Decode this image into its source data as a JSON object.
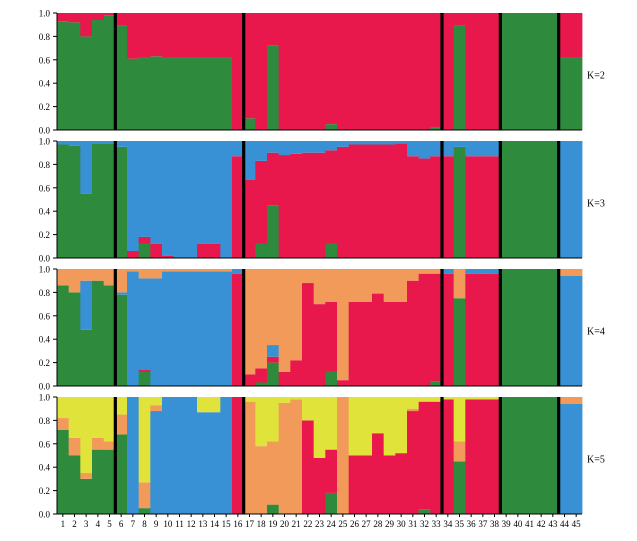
{
  "chart_data": {
    "type": "bar",
    "stacked": true,
    "normalized": true,
    "colors": {
      "green": "#2e8b3e",
      "red": "#e8184c",
      "blue": "#3891d4",
      "orange": "#f29a5a",
      "yellow": "#dfe33a",
      "separator": "#000000"
    },
    "x_labels": [
      "1",
      "2",
      "3",
      "4",
      "5",
      "6",
      "7",
      "8",
      "9",
      "10",
      "11",
      "12",
      "13",
      "14",
      "15",
      "16",
      "17",
      "18",
      "19",
      "20",
      "21",
      "22",
      "23",
      "24",
      "25",
      "26",
      "27",
      "28",
      "29",
      "30",
      "31",
      "32",
      "33",
      "34",
      "35",
      "36",
      "37",
      "38",
      "39",
      "40",
      "41",
      "42",
      "43",
      "44",
      "45"
    ],
    "separators_after": [
      5,
      16,
      33,
      38,
      43
    ],
    "ylim": [
      0,
      1.0
    ],
    "yticks": [
      "0.0",
      "0.2",
      "0.4",
      "0.6",
      "0.8",
      "1.0"
    ],
    "series_order": [
      "green",
      "red",
      "blue",
      "orange",
      "yellow"
    ],
    "panels": [
      {
        "label": "K=2",
        "green": [
          0.93,
          0.92,
          0.8,
          0.94,
          0.98,
          0.89,
          0.61,
          0.62,
          0.63,
          0.62,
          0.62,
          0.62,
          0.62,
          0.62,
          0.62,
          0.0,
          0.1,
          0.0,
          0.72,
          0.0,
          0.0,
          0.0,
          0.0,
          0.05,
          0.0,
          0.0,
          0.0,
          0.0,
          0.0,
          0.0,
          0.0,
          0.0,
          0.02,
          0.0,
          0.89,
          0.0,
          0.0,
          0.0,
          1.0,
          1.0,
          1.0,
          1.0,
          1.0,
          0.62,
          0.62
        ],
        "red": [
          0.07,
          0.08,
          0.2,
          0.06,
          0.02,
          0.11,
          0.39,
          0.38,
          0.37,
          0.38,
          0.38,
          0.38,
          0.38,
          0.38,
          0.38,
          1.0,
          0.9,
          1.0,
          0.28,
          1.0,
          1.0,
          1.0,
          1.0,
          0.95,
          1.0,
          1.0,
          1.0,
          1.0,
          1.0,
          1.0,
          1.0,
          1.0,
          0.98,
          1.0,
          0.11,
          1.0,
          1.0,
          1.0,
          0.0,
          0.0,
          0.0,
          0.0,
          0.0,
          0.38,
          0.38
        ]
      },
      {
        "label": "K=3",
        "green": [
          0.97,
          0.96,
          0.55,
          0.98,
          0.98,
          0.95,
          0.0,
          0.12,
          0.0,
          0.0,
          0.0,
          0.0,
          0.0,
          0.0,
          0.0,
          0.0,
          0.0,
          0.12,
          0.45,
          0.0,
          0.0,
          0.0,
          0.0,
          0.12,
          0.0,
          0.0,
          0.0,
          0.0,
          0.0,
          0.0,
          0.0,
          0.0,
          0.0,
          0.0,
          0.95,
          0.0,
          0.0,
          0.0,
          1.0,
          1.0,
          1.0,
          1.0,
          1.0,
          0.0,
          0.0
        ],
        "red": [
          0.0,
          0.0,
          0.0,
          0.0,
          0.0,
          0.0,
          0.06,
          0.06,
          0.12,
          0.02,
          0.0,
          0.0,
          0.12,
          0.12,
          0.0,
          0.87,
          0.67,
          0.71,
          0.45,
          0.88,
          0.89,
          0.9,
          0.9,
          0.8,
          0.95,
          0.97,
          0.97,
          0.97,
          0.97,
          0.98,
          0.87,
          0.85,
          0.87,
          0.87,
          0.0,
          0.87,
          0.87,
          0.87,
          0.0,
          0.0,
          0.0,
          0.0,
          0.0,
          0.0,
          0.0
        ],
        "blue": [
          0.03,
          0.04,
          0.45,
          0.02,
          0.02,
          0.05,
          0.94,
          0.82,
          0.88,
          0.98,
          1.0,
          1.0,
          0.88,
          0.88,
          1.0,
          0.13,
          0.33,
          0.17,
          0.1,
          0.12,
          0.11,
          0.1,
          0.1,
          0.08,
          0.05,
          0.03,
          0.03,
          0.03,
          0.03,
          0.02,
          0.13,
          0.15,
          0.13,
          0.13,
          0.05,
          0.13,
          0.13,
          0.13,
          0.0,
          0.0,
          0.0,
          0.0,
          0.0,
          1.0,
          1.0
        ]
      },
      {
        "label": "K=4",
        "green": [
          0.86,
          0.8,
          0.48,
          0.9,
          0.86,
          0.78,
          0.0,
          0.12,
          0.0,
          0.0,
          0.0,
          0.0,
          0.0,
          0.0,
          0.0,
          0.0,
          0.0,
          0.03,
          0.2,
          0.0,
          0.0,
          0.0,
          0.0,
          0.12,
          0.0,
          0.0,
          0.0,
          0.0,
          0.0,
          0.0,
          0.0,
          0.0,
          0.04,
          0.0,
          0.75,
          0.0,
          0.0,
          0.0,
          1.0,
          1.0,
          1.0,
          1.0,
          1.0,
          0.0,
          0.0
        ],
        "red": [
          0.0,
          0.0,
          0.0,
          0.0,
          0.0,
          0.0,
          0.0,
          0.02,
          0.0,
          0.0,
          0.0,
          0.0,
          0.0,
          0.0,
          0.0,
          0.96,
          0.1,
          0.12,
          0.05,
          0.12,
          0.22,
          0.88,
          0.7,
          0.6,
          0.05,
          0.72,
          0.72,
          0.79,
          0.72,
          0.72,
          0.9,
          0.96,
          0.92,
          0.96,
          0.0,
          0.96,
          0.96,
          0.96,
          0.0,
          0.0,
          0.0,
          0.0,
          0.0,
          0.0,
          0.0
        ],
        "blue": [
          0.0,
          0.0,
          0.42,
          0.0,
          0.0,
          0.02,
          0.98,
          0.78,
          0.92,
          0.98,
          0.98,
          0.98,
          0.98,
          0.98,
          0.98,
          0.04,
          0.0,
          0.0,
          0.1,
          0.0,
          0.0,
          0.0,
          0.0,
          0.0,
          0.0,
          0.0,
          0.0,
          0.0,
          0.0,
          0.0,
          0.0,
          0.0,
          0.0,
          0.04,
          0.0,
          0.04,
          0.04,
          0.04,
          0.0,
          0.0,
          0.0,
          0.0,
          0.0,
          0.94,
          0.94
        ],
        "orange": [
          0.14,
          0.2,
          0.1,
          0.1,
          0.14,
          0.2,
          0.02,
          0.08,
          0.08,
          0.02,
          0.02,
          0.02,
          0.02,
          0.02,
          0.02,
          0.0,
          0.9,
          0.85,
          0.65,
          0.88,
          0.78,
          0.12,
          0.3,
          0.28,
          0.95,
          0.28,
          0.28,
          0.21,
          0.28,
          0.28,
          0.1,
          0.04,
          0.04,
          0.0,
          0.25,
          0.0,
          0.0,
          0.0,
          0.0,
          0.0,
          0.0,
          0.0,
          0.0,
          0.06,
          0.06
        ]
      },
      {
        "label": "K=5",
        "green": [
          0.72,
          0.5,
          0.3,
          0.55,
          0.55,
          0.68,
          0.0,
          0.05,
          0.0,
          0.0,
          0.0,
          0.0,
          0.0,
          0.0,
          0.0,
          0.0,
          0.0,
          0.0,
          0.08,
          0.0,
          0.0,
          0.0,
          0.0,
          0.18,
          0.0,
          0.0,
          0.0,
          0.0,
          0.0,
          0.0,
          0.0,
          0.04,
          0.0,
          0.0,
          0.45,
          0.0,
          0.0,
          0.0,
          1.0,
          1.0,
          1.0,
          1.0,
          1.0,
          0.0,
          0.0
        ],
        "red": [
          0.0,
          0.0,
          0.0,
          0.0,
          0.0,
          0.0,
          0.0,
          0.0,
          0.0,
          0.0,
          0.0,
          0.0,
          0.0,
          0.0,
          0.0,
          1.0,
          0.0,
          0.0,
          0.0,
          0.0,
          0.0,
          0.8,
          0.48,
          0.37,
          0.0,
          0.5,
          0.5,
          0.69,
          0.5,
          0.52,
          0.88,
          0.92,
          0.96,
          0.98,
          0.0,
          0.98,
          0.98,
          0.98,
          0.0,
          0.0,
          0.0,
          0.0,
          0.0,
          0.0,
          0.0
        ],
        "blue": [
          0.0,
          0.0,
          0.0,
          0.0,
          0.0,
          0.0,
          1.0,
          0.0,
          0.88,
          1.0,
          1.0,
          1.0,
          0.87,
          0.87,
          1.0,
          0.0,
          0.0,
          0.0,
          0.0,
          0.0,
          0.0,
          0.0,
          0.0,
          0.0,
          0.0,
          0.0,
          0.0,
          0.0,
          0.0,
          0.0,
          0.0,
          0.0,
          0.0,
          0.0,
          0.0,
          0.0,
          0.0,
          0.0,
          0.0,
          0.0,
          0.0,
          0.0,
          0.0,
          0.94,
          0.94
        ],
        "orange": [
          0.1,
          0.15,
          0.05,
          0.1,
          0.07,
          0.17,
          0.0,
          0.22,
          0.05,
          0.0,
          0.0,
          0.0,
          0.0,
          0.0,
          0.0,
          0.0,
          0.96,
          0.58,
          0.54,
          0.95,
          0.98,
          0.0,
          0.0,
          0.0,
          1.0,
          0.0,
          0.0,
          0.0,
          0.0,
          0.0,
          0.02,
          0.0,
          0.0,
          0.0,
          0.17,
          0.0,
          0.0,
          0.0,
          0.0,
          0.0,
          0.0,
          0.0,
          0.0,
          0.06,
          0.06
        ],
        "yellow": [
          0.18,
          0.35,
          0.65,
          0.35,
          0.38,
          0.15,
          0.0,
          0.73,
          0.07,
          0.0,
          0.0,
          0.0,
          0.13,
          0.13,
          0.0,
          0.0,
          0.04,
          0.42,
          0.38,
          0.05,
          0.02,
          0.2,
          0.52,
          0.45,
          0.0,
          0.5,
          0.5,
          0.31,
          0.5,
          0.48,
          0.1,
          0.04,
          0.04,
          0.02,
          0.38,
          0.02,
          0.02,
          0.02,
          0.0,
          0.0,
          0.0,
          0.0,
          0.0,
          0.0,
          0.0
        ]
      }
    ]
  }
}
